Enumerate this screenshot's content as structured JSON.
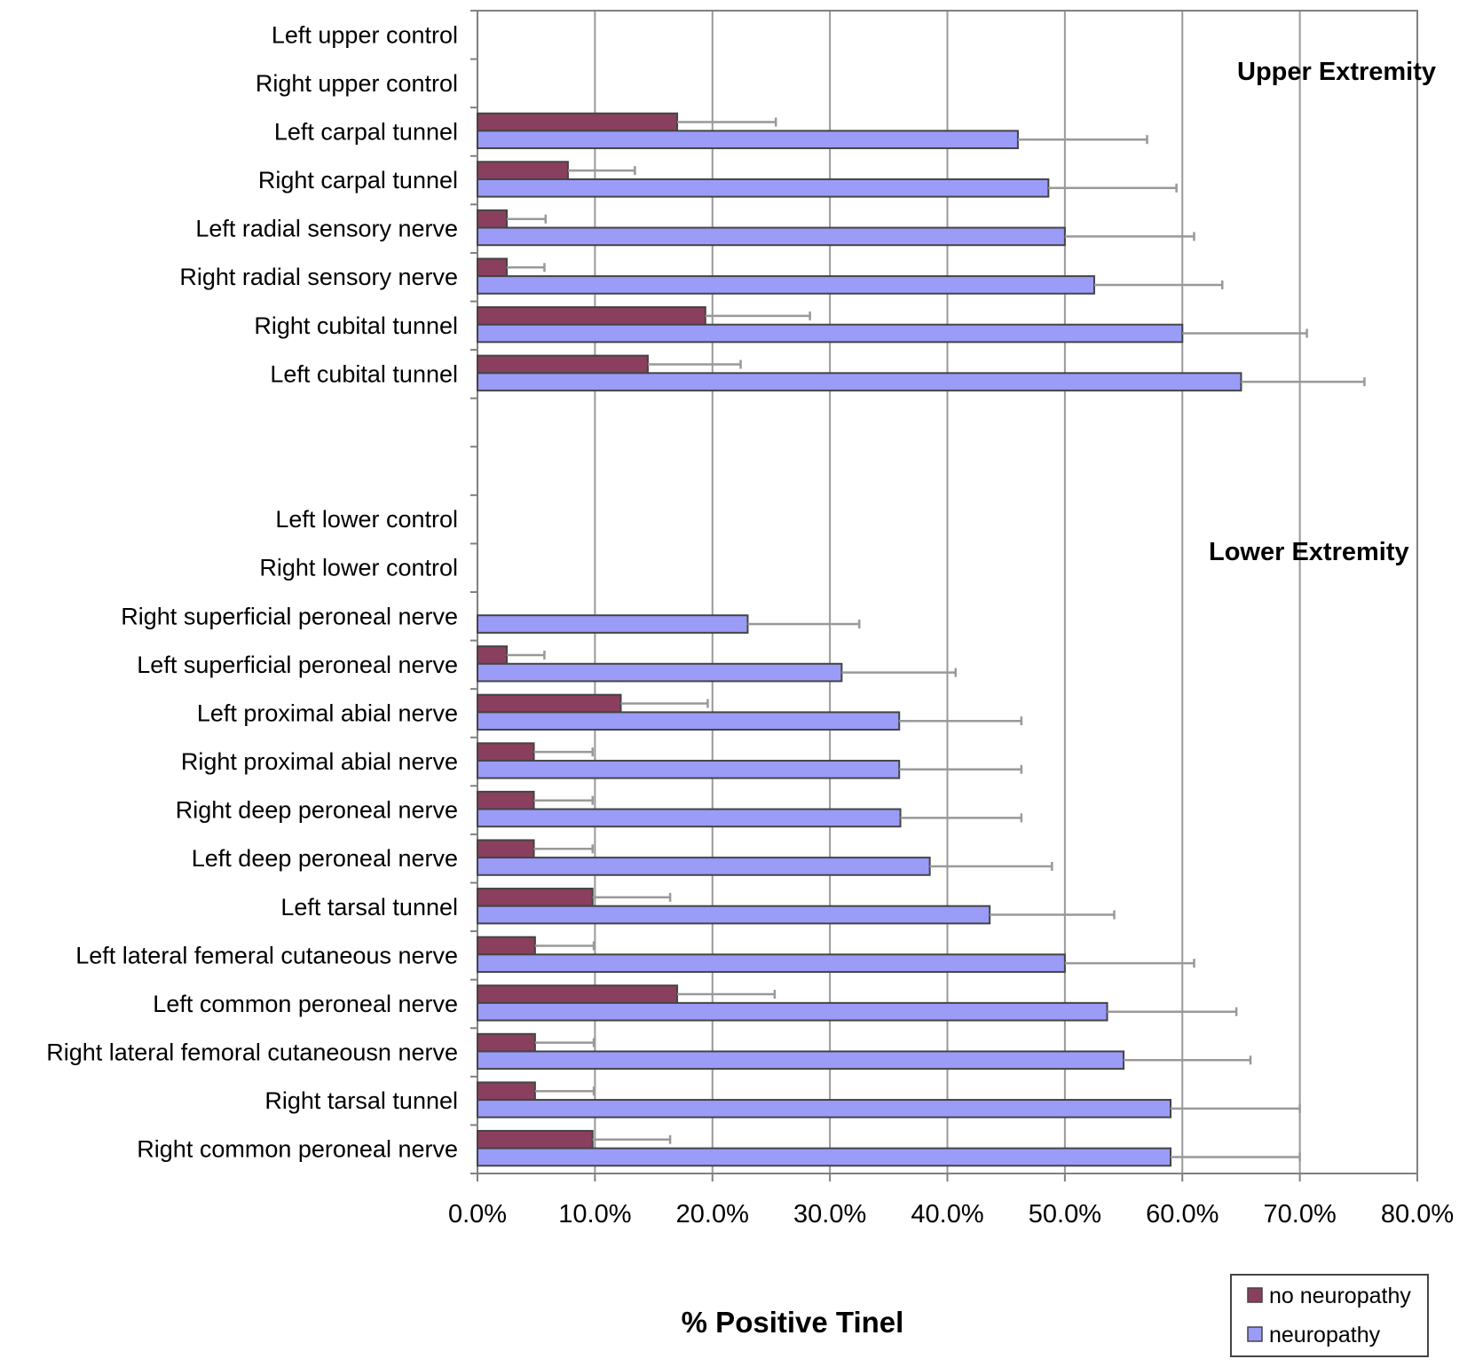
{
  "chart_data": {
    "type": "bar",
    "orientation": "horizontal",
    "xlabel": "% Positive Tinel",
    "xlim": [
      0,
      80
    ],
    "x_ticks": [
      "0.0%",
      "10.0%",
      "20.0%",
      "30.0%",
      "40.0%",
      "50.0%",
      "60.0%",
      "70.0%",
      "80.0%"
    ],
    "grid": "vertical",
    "legend_position": "bottom-right",
    "annotations": [
      "Upper Extremity",
      "Lower Extremity"
    ],
    "categories": [
      "Left upper control",
      "Right upper control",
      "Left carpal tunnel",
      "Right carpal tunnel",
      "Left radial sensory nerve",
      "Right radial sensory nerve",
      "Right cubital tunnel",
      "Left cubital tunnel",
      "",
      "",
      "Left lower control",
      "Right lower control",
      "Right superficial peroneal nerve",
      "Left superficial peroneal nerve",
      "Left proximal abial nerve",
      "Right proximal abial nerve",
      "Right deep peroneal nerve",
      "Left deep peroneal nerve",
      "Left tarsal tunnel",
      "Left lateral femeral cutaneous nerve",
      "Left common peroneal nerve",
      "Right lateral femoral cutaneousn nerve",
      "Right tarsal tunnel",
      "Right common peroneal nerve"
    ],
    "series": [
      {
        "name": "no neuropathy",
        "color": "#8b3f5e",
        "values": [
          null,
          null,
          17,
          7.7,
          2.5,
          2.5,
          19.4,
          14.5,
          null,
          null,
          null,
          null,
          0,
          2.5,
          12.2,
          4.8,
          4.8,
          4.8,
          9.8,
          4.9,
          17,
          4.9,
          4.9,
          9.8
        ],
        "error": [
          null,
          null,
          8.4,
          5.7,
          3.3,
          3.2,
          8.9,
          7.9,
          null,
          null,
          null,
          null,
          0,
          3.2,
          7.4,
          5,
          5,
          5,
          6.6,
          5,
          8.3,
          5,
          5,
          6.6
        ]
      },
      {
        "name": "neuropathy",
        "color": "#9a9cf8",
        "values": [
          null,
          null,
          46,
          48.6,
          50,
          52.5,
          60,
          65,
          null,
          null,
          null,
          null,
          23,
          31,
          35.9,
          35.9,
          36,
          38.5,
          43.6,
          50,
          53.6,
          55,
          59,
          59
        ],
        "error": [
          null,
          null,
          11,
          10.9,
          11,
          10.9,
          10.6,
          10.5,
          null,
          null,
          null,
          null,
          9.5,
          9.7,
          10.4,
          10.4,
          10.3,
          10.4,
          10.6,
          11,
          11,
          10.8,
          11,
          11
        ]
      }
    ]
  }
}
